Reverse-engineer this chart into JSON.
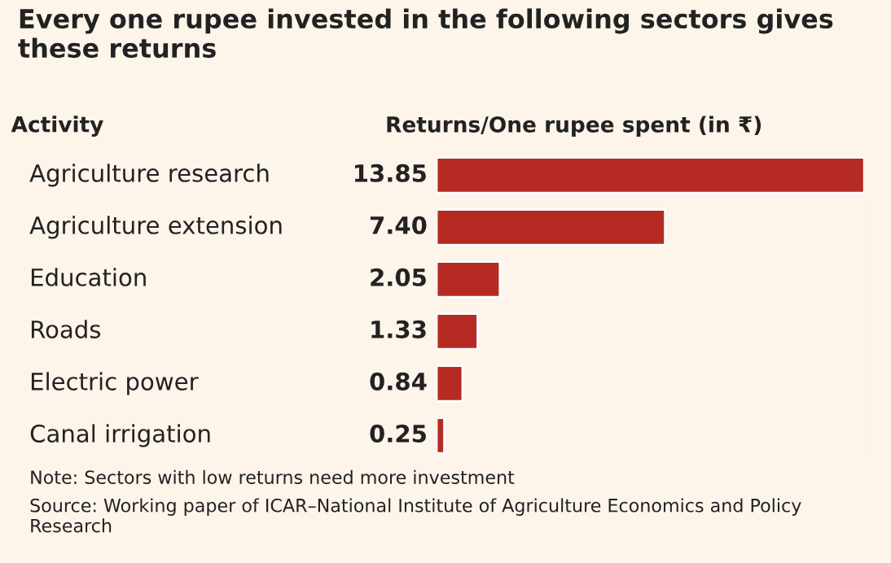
{
  "chart_data": {
    "type": "bar",
    "orientation": "horizontal",
    "title": "Every one rupee invested in the following sectors gives these returns",
    "ylabel": "Activity",
    "xlabel": "Returns/One rupee spent (in ₹)",
    "categories": [
      "Agriculture research",
      "Agriculture extension",
      "Education",
      "Roads",
      "Electric power",
      "Canal irrigation"
    ],
    "values": [
      13.85,
      7.4,
      2.05,
      1.33,
      0.84,
      0.25
    ],
    "value_labels": [
      "13.85",
      "7.40",
      "2.05",
      "1.33",
      "0.84",
      "0.25"
    ],
    "color": "#b52a22",
    "annotations": [
      "Note: Sectors with low returns need more investment",
      "Source: Working paper of ICAR–National Institute of Agriculture Economics and Policy Research"
    ]
  }
}
